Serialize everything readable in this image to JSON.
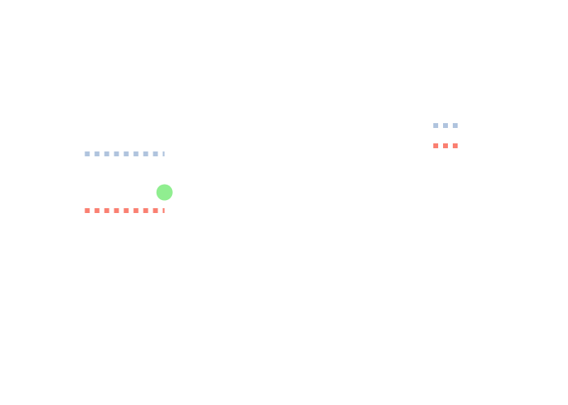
{
  "chart_data": {
    "type": "line",
    "title": "",
    "xlabel": "",
    "ylabel": "",
    "xlim": [
      -0.5,
      10.5
    ],
    "ylim": [
      0,
      6
    ],
    "grid": false,
    "legend": "top-right",
    "series": [
      {
        "color": "#B0C4DE",
        "dash": "dotted",
        "points": [
          [
            0,
            4.2
          ],
          [
            2,
            4.2
          ]
        ],
        "legend_sample_y": 4.9
      },
      {
        "color": "#FA8072",
        "dash": "dotted",
        "points": [
          [
            0,
            2.8
          ],
          [
            2,
            2.8
          ]
        ],
        "legend_sample_y": 4.4
      }
    ],
    "markers": [
      {
        "color": "#90EE90",
        "x": 2,
        "y": 3.25
      }
    ]
  }
}
